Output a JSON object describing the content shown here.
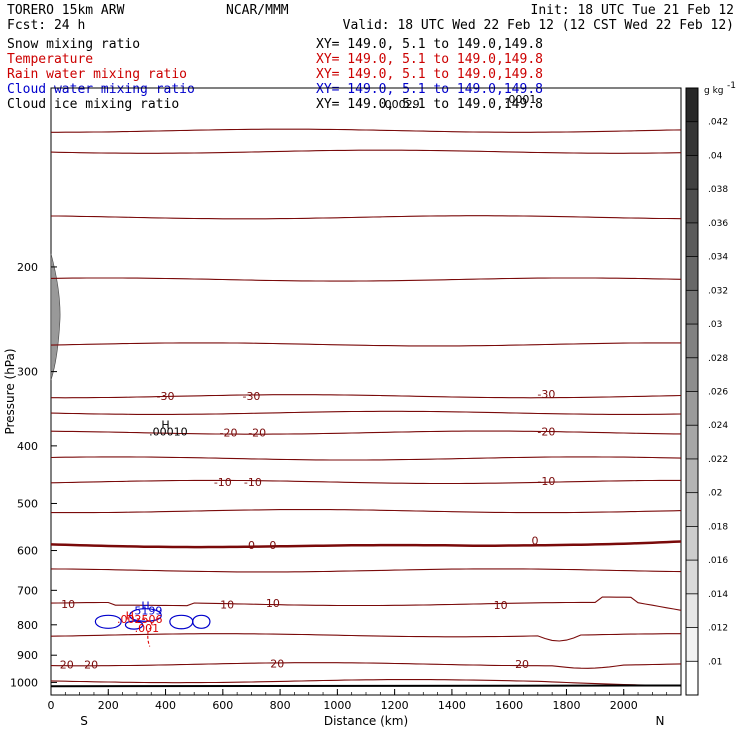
{
  "header": {
    "model": "TORERO  15km ARW",
    "center": "NCAR/MMM",
    "init": "Init: 18 UTC Tue 21 Feb 12",
    "fcst": "Fcst:   24 h",
    "valid": "Valid: 18 UTC Wed 22 Feb 12 (12 CST Wed 22 Feb 12)"
  },
  "fields": [
    {
      "name": "Snow mixing ratio",
      "xy": "",
      "color": "#000000"
    },
    {
      "name": "Temperature",
      "xy": "XY= 149.0,  5.1 to 149.0,149.8",
      "color": "#cc0000"
    },
    {
      "name": "Rain water mixing ratio",
      "xy": "XY= 149.0,  5.1 to 149.0,149.8",
      "color": "#cc0000"
    },
    {
      "name": "Cloud water mixing ratio",
      "xy": "XY= 149.0,  5.1 to 149.0,149.8",
      "color": "#0000cc"
    },
    {
      "name": "Cloud ice mixing ratio",
      "xy": "XY= 149.0,  5.1 to 149.0,149.8",
      "color": "#000000"
    }
  ],
  "first_xy": "XY= 149.0,  5.1 to 149.0,149.8",
  "colors": {
    "temperature": "#7a0a0a",
    "rain": "#dd0000",
    "cloud_water": "#0000cc",
    "ice": "#000000"
  },
  "chart_data": {
    "type": "contour_cross_section",
    "xlabel": "Distance (km)",
    "ylabel": "Pressure (hPa)",
    "x_ticks": [
      0,
      200,
      400,
      600,
      800,
      1000,
      1200,
      1400,
      1600,
      1800,
      2000
    ],
    "y_ticks": [
      200,
      300,
      400,
      500,
      600,
      700,
      800,
      900,
      1000
    ],
    "xlim": [
      0,
      2200
    ],
    "ylim": [
      1050,
      100
    ],
    "left_end": "S",
    "right_end": "N",
    "temperature_isotherms_C": [
      {
        "value": -30,
        "labels": [
          {
            "x": 400,
            "p": 330
          },
          {
            "x": 700,
            "p": 330
          },
          {
            "x": 1730,
            "p": 327
          }
        ]
      },
      {
        "value": -20,
        "labels": [
          {
            "x": 620,
            "p": 380
          },
          {
            "x": 720,
            "p": 380
          },
          {
            "x": 1730,
            "p": 378
          }
        ]
      },
      {
        "value": -10,
        "labels": [
          {
            "x": 600,
            "p": 460
          },
          {
            "x": 705,
            "p": 460
          },
          {
            "x": 1730,
            "p": 458
          }
        ]
      },
      {
        "value": 0,
        "labels": [
          {
            "x": 700,
            "p": 587
          },
          {
            "x": 775,
            "p": 587
          },
          {
            "x": 1690,
            "p": 577
          }
        ]
      },
      {
        "value": 10,
        "labels": [
          {
            "x": 60,
            "p": 738
          },
          {
            "x": 615,
            "p": 740
          },
          {
            "x": 775,
            "p": 735
          },
          {
            "x": 1570,
            "p": 741
          }
        ]
      },
      {
        "value": 20,
        "labels": [
          {
            "x": 55,
            "p": 933
          },
          {
            "x": 140,
            "p": 933
          },
          {
            "x": 790,
            "p": 929
          },
          {
            "x": 1645,
            "p": 931
          }
        ]
      }
    ],
    "annotations": [
      {
        "text": "H",
        "x": 400,
        "p": 374,
        "color": "black"
      },
      {
        "text": ".00010",
        "x": 410,
        "p": 384,
        "color": "black"
      },
      {
        "text": "H",
        "x": 330,
        "p": 754,
        "color": "blue"
      },
      {
        "text": "5199",
        "x": 340,
        "p": 768,
        "color": "blue"
      },
      {
        "text": "H",
        "x": 275,
        "p": 783,
        "color": "red"
      },
      {
        "text": ".002506",
        "x": 310,
        "p": 794,
        "color": "red"
      },
      {
        "text": ".001",
        "x": 335,
        "p": 822,
        "color": "red"
      },
      {
        "text": ".00029",
        "x": 1220,
        "p": 108,
        "color": "black"
      },
      {
        "text": ".0001",
        "x": 1640,
        "p": 106,
        "color": "black"
      }
    ],
    "colorbar": {
      "unit": "g kg",
      "ticks": [
        ".042",
        ".04",
        ".038",
        ".036",
        ".034",
        ".032",
        ".03",
        ".028",
        ".026",
        ".024",
        ".022",
        ".02",
        ".018",
        ".016",
        ".014",
        ".012",
        ".01"
      ]
    }
  }
}
